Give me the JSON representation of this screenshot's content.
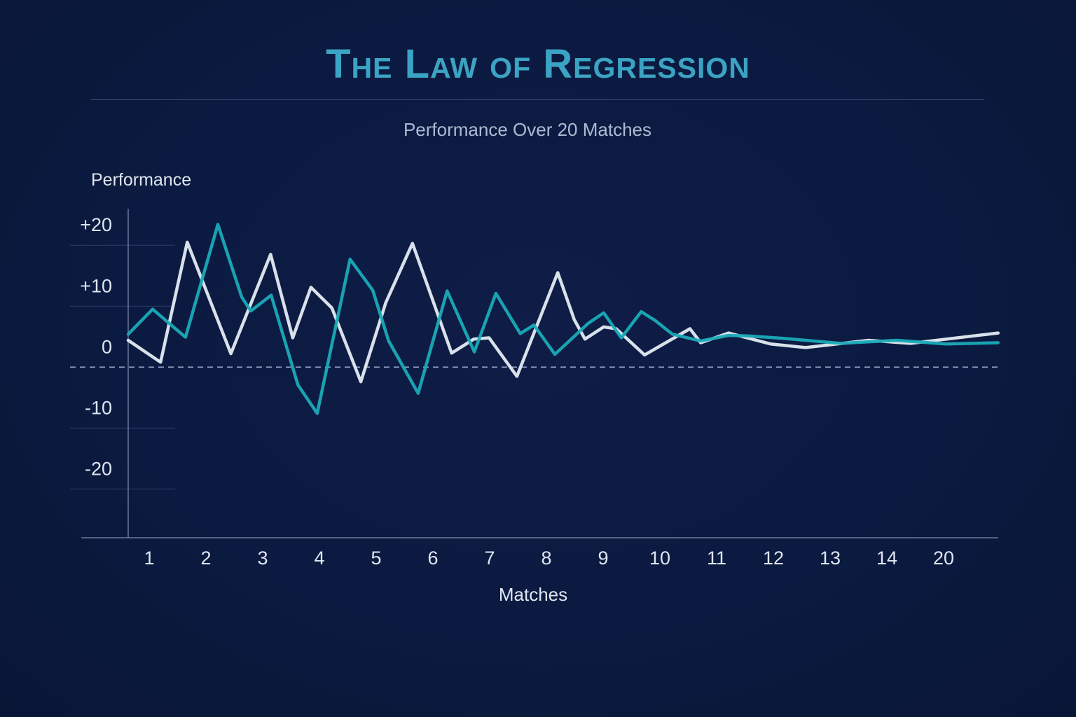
{
  "chart_data": {
    "type": "line",
    "title": "The Law of Regression",
    "subtitle": "Performance Over 20 Matches",
    "xlabel": "Matches",
    "ylabel": "Performance",
    "x_tick_labels": [
      "1",
      "2",
      "3",
      "4",
      "5",
      "6",
      "7",
      "8",
      "9",
      "10",
      "11",
      "12",
      "13",
      "14",
      "20"
    ],
    "y_ticks": [
      {
        "value": 20,
        "label": "+20"
      },
      {
        "value": 10,
        "label": "+10"
      },
      {
        "value": 0,
        "label": "0"
      },
      {
        "value": -10,
        "label": "-10"
      },
      {
        "value": -20,
        "label": "-20"
      }
    ],
    "ylim": [
      -28,
      26
    ],
    "xlim": [
      0.63,
      16.0
    ],
    "zero_line": "dashed",
    "grid": false,
    "series": [
      {
        "color": "#e4ebf3",
        "points": [
          [
            0.63,
            4.4
          ],
          [
            1.2,
            0.8
          ],
          [
            1.67,
            20.5
          ],
          [
            2.44,
            2.2
          ],
          [
            3.14,
            18.5
          ],
          [
            3.53,
            4.8
          ],
          [
            3.85,
            13.1
          ],
          [
            4.22,
            9.7
          ],
          [
            4.73,
            -2.4
          ],
          [
            5.17,
            10.6
          ],
          [
            5.64,
            20.3
          ],
          [
            6.33,
            2.3
          ],
          [
            6.72,
            4.6
          ],
          [
            6.99,
            4.8
          ],
          [
            7.48,
            -1.5
          ],
          [
            8.2,
            15.5
          ],
          [
            8.49,
            7.8
          ],
          [
            8.68,
            4.6
          ],
          [
            9.01,
            6.6
          ],
          [
            9.23,
            6.3
          ],
          [
            9.73,
            2.0
          ],
          [
            10.53,
            6.3
          ],
          [
            10.72,
            4.0
          ],
          [
            11.21,
            5.6
          ],
          [
            11.95,
            3.8
          ],
          [
            12.57,
            3.2
          ],
          [
            13.68,
            4.4
          ],
          [
            14.42,
            3.9
          ],
          [
            15.96,
            5.6
          ]
        ]
      },
      {
        "color": "#1aabb8",
        "points": [
          [
            0.63,
            5.4
          ],
          [
            1.06,
            9.5
          ],
          [
            1.64,
            4.9
          ],
          [
            2.21,
            23.4
          ],
          [
            2.63,
            11.5
          ],
          [
            2.79,
            9.2
          ],
          [
            3.15,
            11.8
          ],
          [
            3.62,
            -2.9
          ],
          [
            3.96,
            -7.6
          ],
          [
            4.54,
            17.7
          ],
          [
            4.94,
            12.6
          ],
          [
            5.22,
            4.3
          ],
          [
            5.74,
            -4.3
          ],
          [
            6.25,
            12.5
          ],
          [
            6.73,
            2.5
          ],
          [
            7.11,
            12.1
          ],
          [
            7.54,
            5.5
          ],
          [
            7.78,
            6.9
          ],
          [
            8.15,
            2.1
          ],
          [
            8.74,
            7.2
          ],
          [
            9.01,
            8.9
          ],
          [
            9.32,
            4.8
          ],
          [
            9.67,
            9.1
          ],
          [
            9.91,
            7.7
          ],
          [
            10.22,
            5.4
          ],
          [
            10.72,
            4.3
          ],
          [
            11.21,
            5.2
          ],
          [
            11.58,
            5.1
          ],
          [
            12.2,
            4.7
          ],
          [
            13.19,
            3.9
          ],
          [
            14.17,
            4.4
          ],
          [
            15.04,
            3.8
          ],
          [
            15.96,
            4.0
          ]
        ]
      }
    ]
  }
}
